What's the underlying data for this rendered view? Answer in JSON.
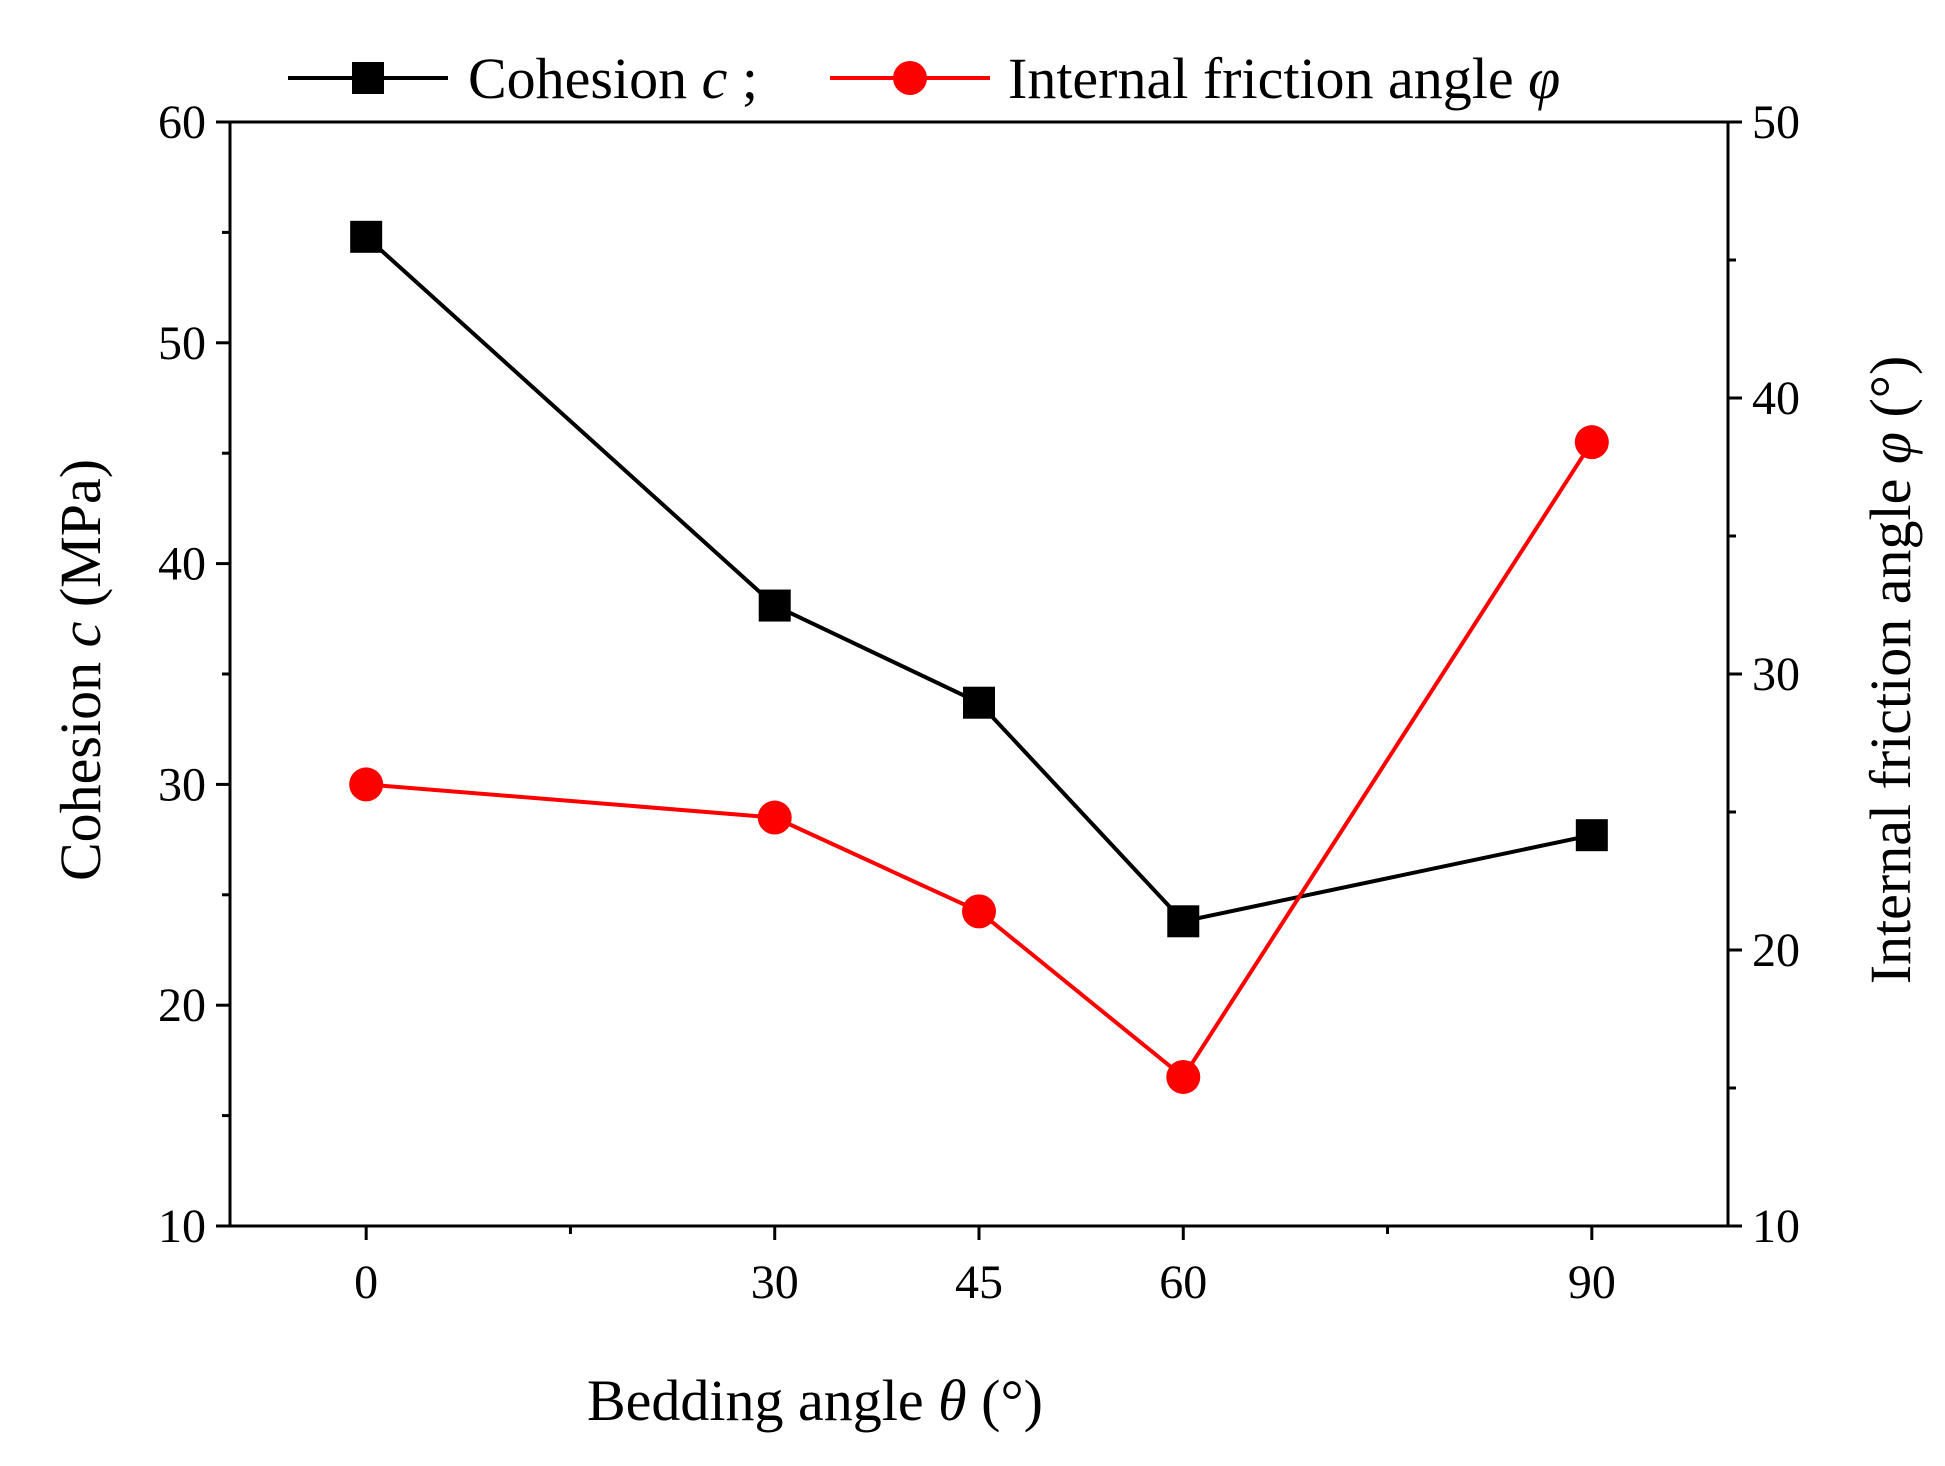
{
  "chart_data": {
    "type": "line",
    "title": "",
    "xlabel": {
      "main": "Bedding angle ",
      "symbol": "θ",
      "unit": " (°)"
    },
    "ylabel_left": {
      "main": "Cohesion ",
      "symbol": "c",
      "unit": " (MPa)"
    },
    "ylabel_right": {
      "main": "Internal friction angle ",
      "symbol": "φ",
      "unit": " (°)"
    },
    "x": [
      0,
      30,
      45,
      60,
      90
    ],
    "x_ticks": [
      "0",
      "30",
      "45",
      "60",
      "90"
    ],
    "xlim": [
      -10,
      100
    ],
    "ylim_left": [
      10,
      60
    ],
    "ylim_right": [
      10,
      50
    ],
    "y_ticks_left": [
      "10",
      "20",
      "30",
      "40",
      "50",
      "60"
    ],
    "y_ticks_right": [
      "10",
      "20",
      "30",
      "40",
      "50"
    ],
    "legend": {
      "position": "top-center",
      "separator": " ;"
    },
    "series": [
      {
        "name": "Cohesion c",
        "label": "Cohesion ",
        "symbol": "c",
        "axis": "left",
        "marker": "square",
        "color": "#000000",
        "values": [
          54.8,
          38.1,
          33.7,
          23.8,
          27.7
        ]
      },
      {
        "name": "Internal friction angle φ",
        "label": "Internal friction angle ",
        "symbol": "φ",
        "axis": "right",
        "marker": "circle",
        "color": "#ff0000",
        "values": [
          26.0,
          24.8,
          21.4,
          15.4,
          38.4
        ]
      }
    ]
  }
}
